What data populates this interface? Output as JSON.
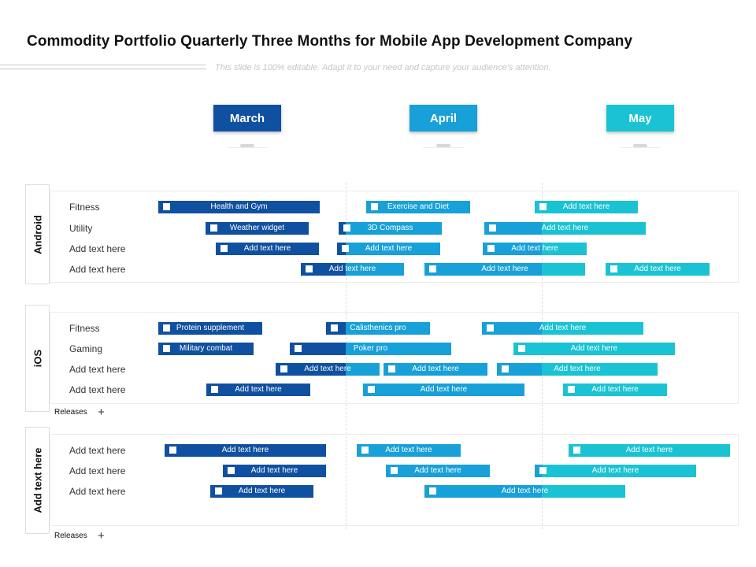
{
  "title": "Commodity Portfolio Quarterly Three Months for Mobile App Development Company",
  "subtitle": "This slide is 100% editable. Adapt it to your need and capture your audience's attention.",
  "colors": {
    "march": "#1050a0",
    "april": "#18a0d8",
    "may": "#19c3d3"
  },
  "months": [
    "March",
    "April",
    "May"
  ],
  "groups": [
    {
      "label": "Android",
      "rows": [
        {
          "label": "Fitness",
          "bars": [
            {
              "text": "Health and Gym",
              "segments": [
                "march"
              ]
            },
            {
              "text": "Exercise and Diet",
              "segments": [
                "april"
              ]
            },
            {
              "text": "Add text here",
              "segments": [
                "may"
              ]
            }
          ]
        },
        {
          "label": "Utility",
          "bars": [
            {
              "text": "Weather widget",
              "segments": [
                "march"
              ]
            },
            {
              "text": "3D Compass",
              "segments": [
                "march",
                "april"
              ]
            },
            {
              "text": "Add text here",
              "segments": [
                "april",
                "may"
              ]
            }
          ]
        },
        {
          "label": "Add text here",
          "bars": [
            {
              "text": "Add text here",
              "segments": [
                "march"
              ]
            },
            {
              "text": "Add text here",
              "segments": [
                "march",
                "april"
              ]
            },
            {
              "text": "Add text here",
              "segments": [
                "april",
                "may"
              ]
            }
          ]
        },
        {
          "label": "Add text here",
          "bars": [
            {
              "text": "Add text here",
              "segments": [
                "march",
                "april"
              ]
            },
            {
              "text": "Add text here",
              "segments": [
                "april",
                "may"
              ]
            },
            {
              "text": "Add text here",
              "segments": [
                "may"
              ]
            }
          ]
        }
      ]
    },
    {
      "label": "iOS",
      "rows": [
        {
          "label": "Fitness",
          "bars": [
            {
              "text": "Protein supplement",
              "segments": [
                "march"
              ]
            },
            {
              "text": "Calisthenics pro",
              "segments": [
                "march",
                "april"
              ]
            },
            {
              "text": "Add text here",
              "segments": [
                "april",
                "may"
              ]
            }
          ]
        },
        {
          "label": "Gaming",
          "bars": [
            {
              "text": "Military combat",
              "segments": [
                "march"
              ]
            },
            {
              "text": "Poker pro",
              "segments": [
                "march",
                "april"
              ]
            },
            {
              "text": "Add text here",
              "segments": [
                "may"
              ]
            }
          ]
        },
        {
          "label": "Add text here",
          "bars": [
            {
              "text": "Add text here",
              "segments": [
                "march",
                "april"
              ]
            },
            {
              "text": "Add text here",
              "segments": [
                "april"
              ]
            },
            {
              "text": "Add text here",
              "segments": [
                "april",
                "may"
              ]
            }
          ]
        },
        {
          "label": "Add text here",
          "bars": [
            {
              "text": "Add text here",
              "segments": [
                "march"
              ]
            },
            {
              "text": "Add text here",
              "segments": [
                "april"
              ]
            },
            {
              "text": "Add text here",
              "segments": [
                "may"
              ]
            }
          ]
        }
      ],
      "footer": "Releases"
    },
    {
      "label": "Add text here",
      "rows": [
        {
          "label": "Add text here",
          "bars": [
            {
              "text": "Add text here",
              "segments": [
                "march"
              ]
            },
            {
              "text": "Add text here",
              "segments": [
                "april"
              ]
            },
            {
              "text": "Add text here",
              "segments": [
                "may"
              ]
            }
          ]
        },
        {
          "label": "Add text here",
          "bars": [
            {
              "text": "Add text here",
              "segments": [
                "march"
              ]
            },
            {
              "text": "Add text here",
              "segments": [
                "april"
              ]
            },
            {
              "text": "Add text here",
              "segments": [
                "april",
                "may"
              ]
            }
          ]
        },
        {
          "label": "Add text here",
          "bars": [
            {
              "text": "Add text here",
              "segments": [
                "march"
              ]
            },
            {
              "text": "Add text here",
              "segments": [
                "april",
                "may"
              ]
            }
          ]
        }
      ],
      "footer": "Releases"
    }
  ]
}
